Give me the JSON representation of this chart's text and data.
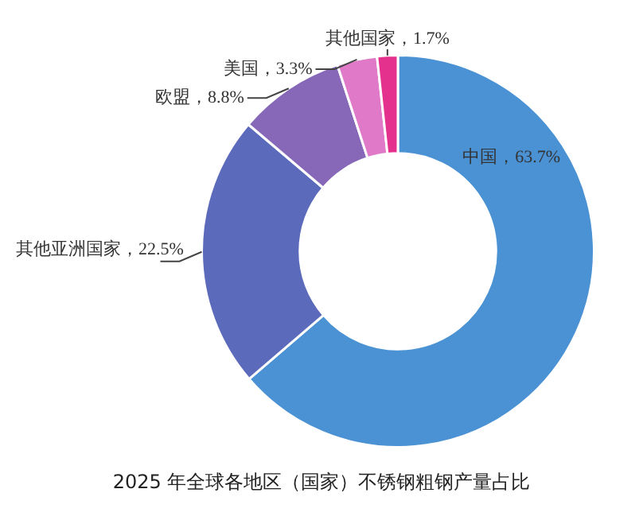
{
  "chart_data": {
    "type": "donut",
    "title": "2025 年全球各地区（国家）不锈钢粗钢产量占比",
    "categories": [
      "中国",
      "其他亚洲国家",
      "欧盟",
      "美国",
      "其他国家"
    ],
    "values": [
      63.7,
      22.5,
      8.8,
      3.3,
      1.7
    ],
    "value_labels": [
      "63.7%",
      "22.5%",
      "8.8%",
      "3.3%",
      "1.7%"
    ],
    "colors": [
      "#4a92d4",
      "#5b6abb",
      "#8667b8",
      "#e07ac8",
      "#e5318e"
    ],
    "legend": false
  }
}
